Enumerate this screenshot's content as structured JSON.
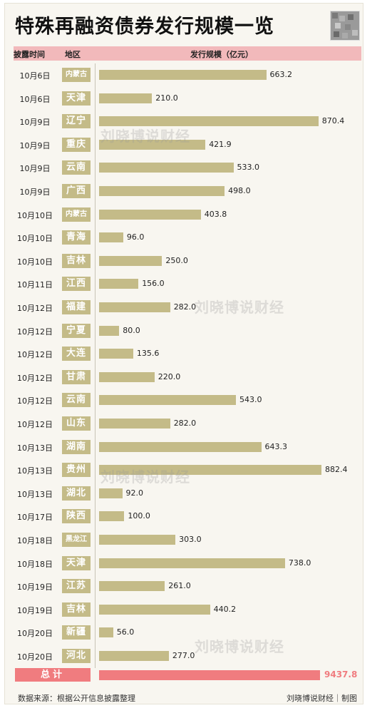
{
  "header": {
    "title": "特殊再融资债券发行规模一览",
    "col_date": "披露时间",
    "col_region": "地区",
    "col_size": "发行规模（亿元）"
  },
  "chart_data": {
    "type": "bar",
    "orientation": "horizontal",
    "title": "特殊再融资债券发行规模一览",
    "xlabel": "发行规模（亿元）",
    "xlim": [
      0,
      882.4
    ],
    "rows": [
      {
        "date": "10月6日",
        "region": "内蒙古",
        "value": 663.2
      },
      {
        "date": "10月6日",
        "region": "天津",
        "value": 210.0
      },
      {
        "date": "10月9日",
        "region": "辽宁",
        "value": 870.4
      },
      {
        "date": "10月9日",
        "region": "重庆",
        "value": 421.9
      },
      {
        "date": "10月9日",
        "region": "云南",
        "value": 533.0
      },
      {
        "date": "10月9日",
        "region": "广西",
        "value": 498.0
      },
      {
        "date": "10月10日",
        "region": "内蒙古",
        "value": 403.8
      },
      {
        "date": "10月10日",
        "region": "青海",
        "value": 96.0
      },
      {
        "date": "10月10日",
        "region": "吉林",
        "value": 250.0
      },
      {
        "date": "10月11日",
        "region": "江西",
        "value": 156.0
      },
      {
        "date": "10月12日",
        "region": "福建",
        "value": 282.0
      },
      {
        "date": "10月12日",
        "region": "宁夏",
        "value": 80.0
      },
      {
        "date": "10月12日",
        "region": "大连",
        "value": 135.6
      },
      {
        "date": "10月12日",
        "region": "甘肃",
        "value": 220.0
      },
      {
        "date": "10月12日",
        "region": "云南",
        "value": 543.0
      },
      {
        "date": "10月12日",
        "region": "山东",
        "value": 282.0
      },
      {
        "date": "10月13日",
        "region": "湖南",
        "value": 643.3
      },
      {
        "date": "10月13日",
        "region": "贵州",
        "value": 882.4
      },
      {
        "date": "10月13日",
        "region": "湖北",
        "value": 92.0
      },
      {
        "date": "10月17日",
        "region": "陕西",
        "value": 100.0
      },
      {
        "date": "10月18日",
        "region": "黑龙江",
        "value": 303.0
      },
      {
        "date": "10月18日",
        "region": "天津",
        "value": 738.0
      },
      {
        "date": "10月19日",
        "region": "江苏",
        "value": 261.0
      },
      {
        "date": "10月19日",
        "region": "吉林",
        "value": 440.2
      },
      {
        "date": "10月20日",
        "region": "新疆",
        "value": 56.0
      },
      {
        "date": "10月20日",
        "region": "河北",
        "value": 277.0
      }
    ],
    "total": {
      "label": "总计",
      "value": "9437.8"
    }
  },
  "watermark": "刘晓博说财经",
  "footer": {
    "source": "数据来源：根据公开信息披露整理",
    "credit": "刘晓博说财经｜制图"
  },
  "colors": {
    "bar": "#c4bb88",
    "total": "#f07c7f",
    "header_bar": "#f2b9bb"
  }
}
